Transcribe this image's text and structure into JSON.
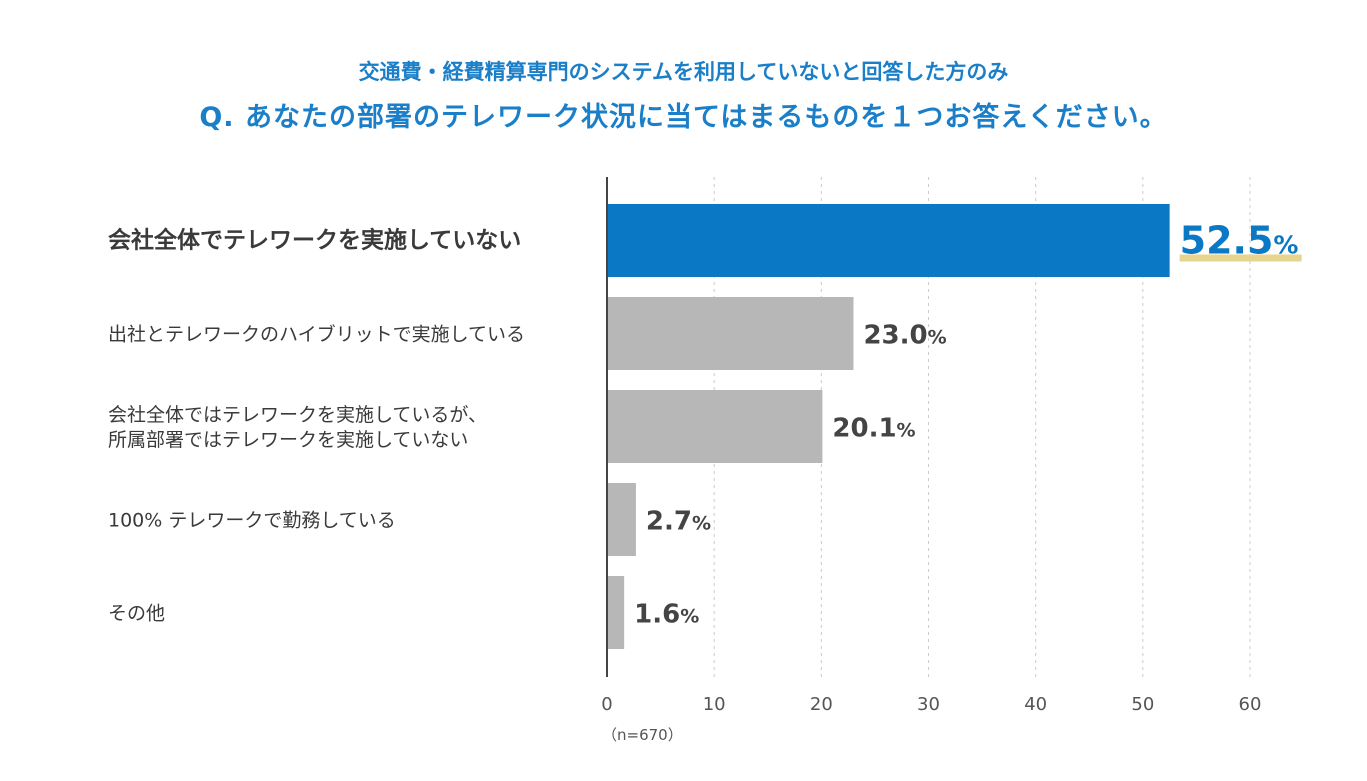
{
  "header": {
    "subtitle": "交通費・経費精算専門のシステムを利用していないと回答した方のみ",
    "title": "Q. あなたの部署のテレワーク状況に当てはまるものを１つお答えください。"
  },
  "chart_data": {
    "type": "bar",
    "orientation": "horizontal",
    "categories": [
      [
        "会社全体でテレワークを実施していない"
      ],
      [
        "出社とテレワークのハイブリットで実施している"
      ],
      [
        "会社全体ではテレワークを実施しているが、",
        "所属部署ではテレワークを実施していない"
      ],
      [
        "100% テレワークで勤務している"
      ],
      [
        "その他"
      ]
    ],
    "values": [
      52.5,
      23.0,
      20.1,
      2.7,
      1.6
    ],
    "value_labels": [
      "52.5",
      "23.0",
      "20.1",
      "2.7",
      "1.6"
    ],
    "unit": "%",
    "highlight_index": 0,
    "xlim": [
      0,
      60
    ],
    "xticks": [
      0,
      10,
      20,
      30,
      40,
      50,
      60
    ],
    "grid": true,
    "note": "（n=670）",
    "colors": {
      "highlight_bar": "#0a78c4",
      "bar": "#b7b7b7",
      "highlight_text": "#0a78c4",
      "underline": "#e6d48f",
      "grid": "#cccccc",
      "axis": "#444444"
    }
  }
}
